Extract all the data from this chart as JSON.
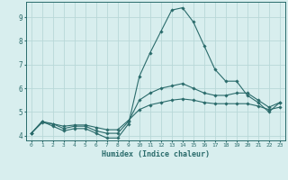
{
  "xlabel": "Humidex (Indice chaleur)",
  "x_values": [
    0,
    1,
    2,
    3,
    4,
    5,
    6,
    7,
    8,
    9,
    10,
    11,
    12,
    13,
    14,
    15,
    16,
    17,
    18,
    19,
    20,
    21,
    22,
    23
  ],
  "line1": [
    4.1,
    4.6,
    4.4,
    4.2,
    4.3,
    4.3,
    4.1,
    3.9,
    3.9,
    4.5,
    6.5,
    7.5,
    8.4,
    9.3,
    9.4,
    8.8,
    7.8,
    6.8,
    6.3,
    6.3,
    5.7,
    5.4,
    5.0,
    5.4
  ],
  "line2": [
    4.1,
    4.6,
    4.5,
    4.3,
    4.4,
    4.4,
    4.2,
    4.1,
    4.1,
    4.6,
    5.5,
    5.8,
    6.0,
    6.1,
    6.2,
    6.0,
    5.8,
    5.7,
    5.7,
    5.8,
    5.8,
    5.5,
    5.2,
    5.4
  ],
  "line3": [
    4.1,
    4.55,
    4.5,
    4.4,
    4.45,
    4.45,
    4.35,
    4.25,
    4.25,
    4.65,
    5.1,
    5.3,
    5.4,
    5.5,
    5.55,
    5.5,
    5.4,
    5.35,
    5.35,
    5.35,
    5.35,
    5.25,
    5.1,
    5.2
  ],
  "line_color": "#2a6b6b",
  "bg_color": "#d8eeee",
  "grid_color": "#b8d8d8",
  "ylim": [
    3.8,
    9.65
  ],
  "yticks": [
    4,
    5,
    6,
    7,
    8,
    9
  ],
  "xlim": [
    -0.5,
    23.5
  ]
}
